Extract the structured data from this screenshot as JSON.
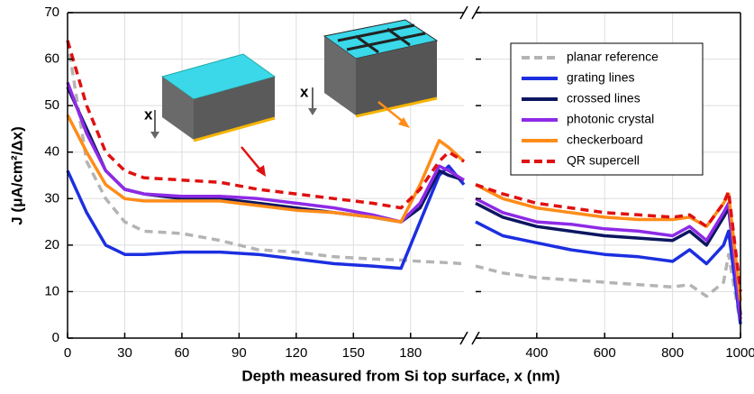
{
  "chart_data": {
    "type": "line",
    "xlabel": "Depth measured from Si top surface, x (nm)",
    "ylabel": "J (μA/cm²/Δx)",
    "ylim": [
      0,
      70
    ],
    "yticks": [
      0,
      10,
      20,
      30,
      40,
      50,
      60,
      70
    ],
    "grid": true,
    "legend": "upper right",
    "inset_labels": [
      "x",
      "x"
    ],
    "panels": [
      {
        "xlim": [
          0,
          208
        ],
        "xticks": [
          0,
          30,
          60,
          90,
          120,
          150,
          180
        ],
        "x": [
          0,
          10,
          20,
          30,
          40,
          60,
          80,
          100,
          120,
          140,
          160,
          175,
          185,
          195,
          200,
          208
        ]
      },
      {
        "xlim": [
          220,
          1000
        ],
        "xticks": [
          400,
          600,
          800,
          1000
        ],
        "x": [
          220,
          300,
          400,
          500,
          600,
          700,
          800,
          850,
          900,
          950,
          965,
          1000
        ]
      }
    ],
    "series": [
      {
        "name": "planar reference",
        "color": "#b4b4b4",
        "linestyle": "dashed",
        "values": [
          [
            64,
            38,
            30,
            25,
            23,
            22.5,
            21,
            19,
            18.5,
            17.5,
            17,
            16.8,
            16.5,
            16.3,
            16.2,
            16
          ],
          [
            15.5,
            14,
            13,
            12.5,
            12,
            11.5,
            11,
            11.5,
            9,
            12,
            18,
            3
          ]
        ]
      },
      {
        "name": "grating lines",
        "color": "#1c2fe0",
        "linestyle": "solid",
        "values": [
          [
            36,
            27,
            20,
            18,
            18,
            18.5,
            18.5,
            18,
            17,
            16,
            15.5,
            15,
            25,
            35,
            37,
            33
          ],
          [
            25,
            22,
            20.5,
            19,
            18,
            17.5,
            16.5,
            19,
            16,
            20,
            23,
            3
          ]
        ]
      },
      {
        "name": "crossed lines",
        "color": "#0c1660",
        "linestyle": "solid",
        "values": [
          [
            54,
            45,
            36,
            32,
            31,
            30,
            30,
            29,
            28,
            27,
            26,
            25,
            28,
            36,
            35,
            34
          ],
          [
            29,
            26,
            24,
            23,
            22,
            21.5,
            21,
            23,
            20,
            26,
            28,
            5
          ]
        ]
      },
      {
        "name": "photonic crystal",
        "color": "#8e2ae6",
        "linestyle": "solid",
        "values": [
          [
            55,
            44,
            36,
            32,
            31,
            30.5,
            30.5,
            30,
            29,
            28,
            26.5,
            25,
            29,
            37,
            36,
            34
          ],
          [
            30,
            27,
            25,
            24.5,
            23.5,
            23,
            22,
            24,
            21,
            27,
            29,
            4
          ]
        ]
      },
      {
        "name": "checkerboard",
        "color": "#ff8c1a",
        "linestyle": "solid",
        "values": [
          [
            48,
            40,
            33,
            30,
            29.5,
            29.5,
            29.5,
            28.5,
            27.5,
            27,
            26,
            25,
            33,
            42.5,
            41,
            38
          ],
          [
            33,
            30,
            28,
            27,
            26,
            25.5,
            25.5,
            26,
            24,
            29,
            31,
            8
          ]
        ]
      },
      {
        "name": "QR supercell",
        "color": "#e01010",
        "linestyle": "dashed",
        "values": [
          [
            64,
            50,
            40,
            36,
            34.5,
            34,
            33.5,
            32,
            31,
            30,
            29,
            28,
            32,
            38,
            40,
            38
          ],
          [
            33,
            31,
            29,
            28,
            27,
            26.5,
            26,
            26.5,
            24,
            29,
            31.5,
            10
          ]
        ]
      }
    ]
  }
}
